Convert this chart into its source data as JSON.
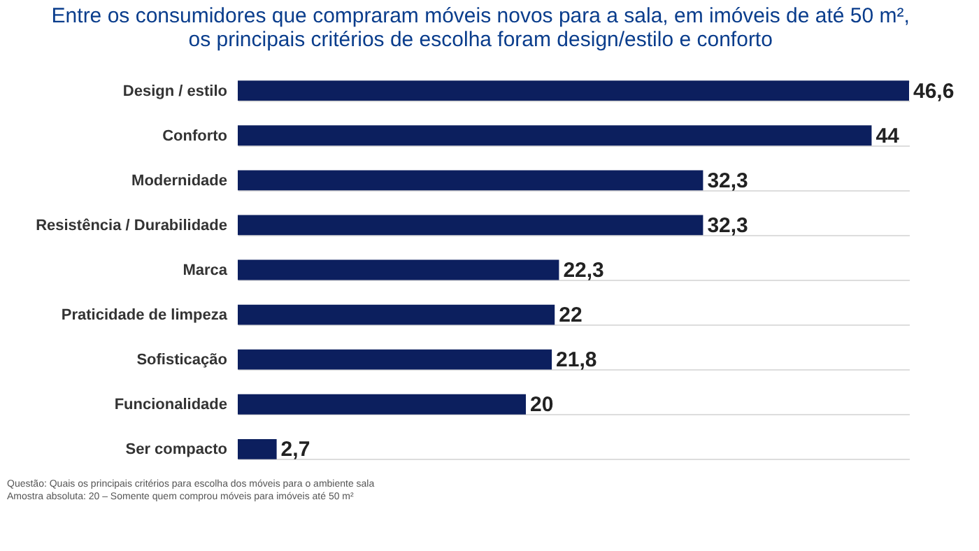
{
  "chart_data": {
    "type": "bar",
    "orientation": "horizontal",
    "title": [
      "Entre os consumidores que compraram móveis novos para a sala, em imóveis de até 50 m²,",
      "os principais critérios de escolha foram design/estilo e conforto"
    ],
    "categories": [
      "Design / estilo",
      "Conforto",
      "Modernidade",
      "Resistência / Durabilidade",
      "Marca",
      "Praticidade de limpeza",
      "Sofisticação",
      "Funcionalidade",
      "Ser compacto"
    ],
    "values": [
      46.6,
      44,
      32.3,
      32.3,
      22.3,
      22,
      21.8,
      20,
      2.7
    ],
    "value_labels": [
      "46,6",
      "44",
      "32,3",
      "32,3",
      "22,3",
      "22",
      "21,8",
      "20",
      "2,7"
    ],
    "color": "#0c1f5e",
    "grid": "y",
    "tick_labels": "y",
    "annotations": [
      "Questão: Quais os principais critérios para escolha dos móveis para o ambiente sala",
      "Amostra absoluta: 20 – Somente quem comprou móveis para imóveis até 50 m²"
    ]
  }
}
